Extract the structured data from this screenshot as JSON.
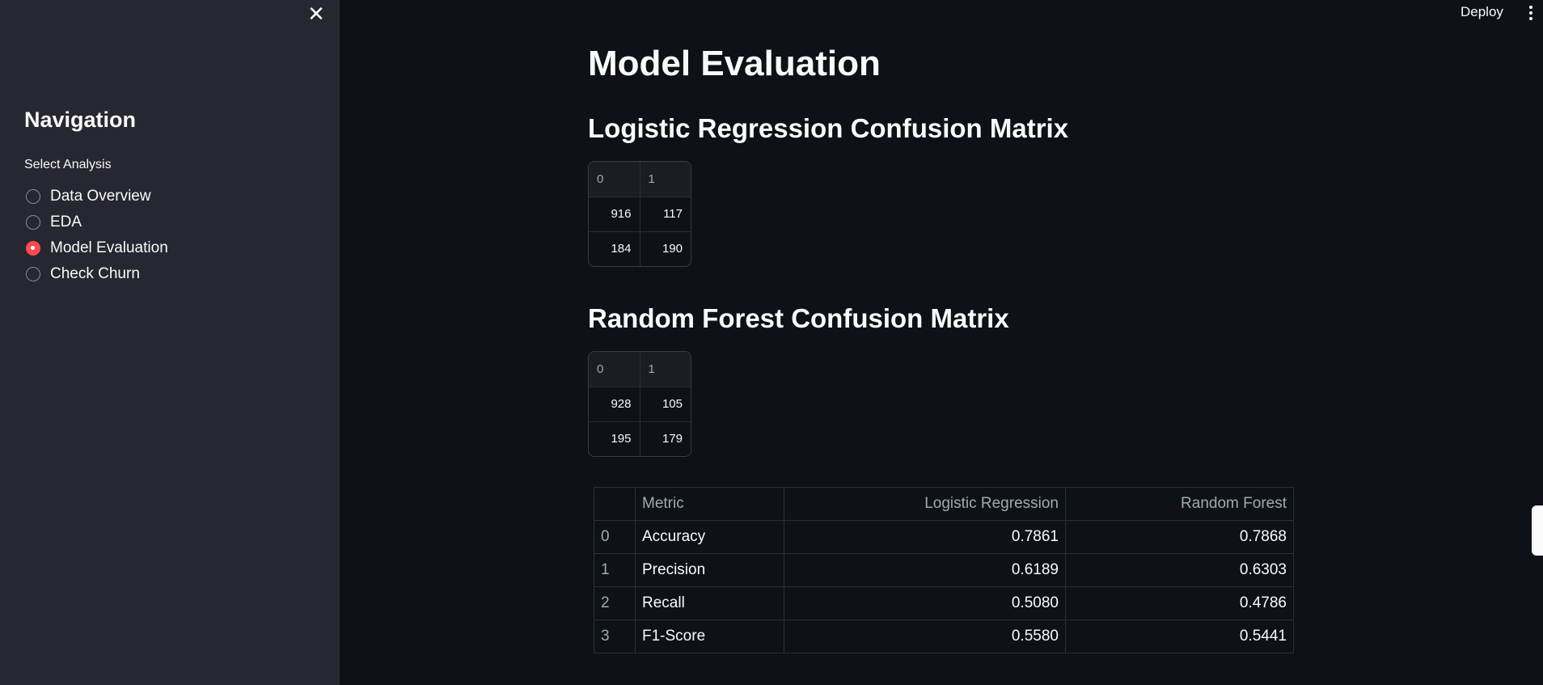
{
  "sidebar": {
    "title": "Navigation",
    "radio_label": "Select Analysis",
    "options": [
      {
        "label": "Data Overview",
        "selected": false
      },
      {
        "label": "EDA",
        "selected": false
      },
      {
        "label": "Model Evaluation",
        "selected": true
      },
      {
        "label": "Check Churn",
        "selected": false
      }
    ],
    "close_icon": "close-icon"
  },
  "header": {
    "deploy_label": "Deploy",
    "menu_icon": "vertical-ellipsis-icon"
  },
  "main": {
    "title": "Model Evaluation",
    "lr_heading": "Logistic Regression Confusion Matrix",
    "lr_matrix": {
      "headers": [
        "0",
        "1"
      ],
      "rows": [
        [
          "916",
          "117"
        ],
        [
          "184",
          "190"
        ]
      ]
    },
    "rf_heading": "Random Forest Confusion Matrix",
    "rf_matrix": {
      "headers": [
        "0",
        "1"
      ],
      "rows": [
        [
          "928",
          "105"
        ],
        [
          "195",
          "179"
        ]
      ]
    },
    "metrics_table": {
      "headers": [
        "",
        "Metric",
        "Logistic Regression",
        "Random Forest"
      ],
      "rows": [
        [
          "0",
          "Accuracy",
          "0.7861",
          "0.7868"
        ],
        [
          "1",
          "Precision",
          "0.6189",
          "0.6303"
        ],
        [
          "2",
          "Recall",
          "0.5080",
          "0.4786"
        ],
        [
          "3",
          "F1-Score",
          "0.5580",
          "0.5441"
        ]
      ]
    }
  },
  "colors": {
    "accent": "#ff4b4b",
    "background": "#0e1117",
    "sidebar": "#262730"
  }
}
